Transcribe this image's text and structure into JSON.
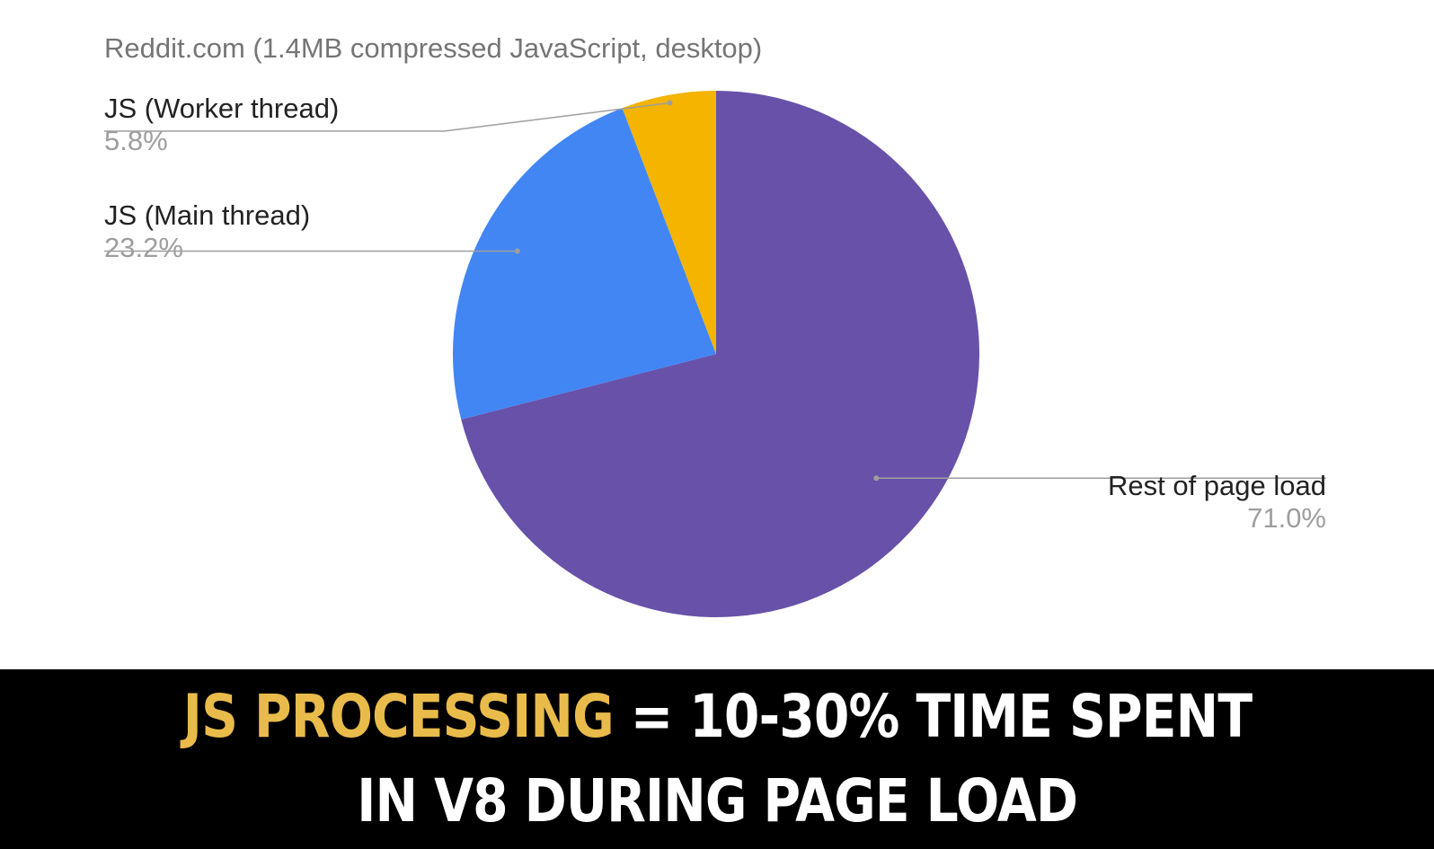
{
  "chart_data": {
    "type": "pie",
    "title": "Reddit.com (1.4MB compressed JavaScript, desktop)",
    "slices": [
      {
        "label": "Rest of page load",
        "value": 71.0,
        "value_text": "71.0%",
        "color": "#6851a9"
      },
      {
        "label": "JS (Main thread)",
        "value": 23.2,
        "value_text": "23.2%",
        "color": "#4286f4"
      },
      {
        "label": "JS (Worker thread)",
        "value": 5.8,
        "value_text": "5.8%",
        "color": "#f4b400"
      }
    ],
    "start_angle": "12 o'clock",
    "direction": "clockwise"
  },
  "banner": {
    "line1_highlight": "JS PROCESSING",
    "line1_rest": " = 10-30% TIME SPENT",
    "line2": "IN V8 DURING PAGE LOAD",
    "highlight_color": "#e9bb4a"
  }
}
